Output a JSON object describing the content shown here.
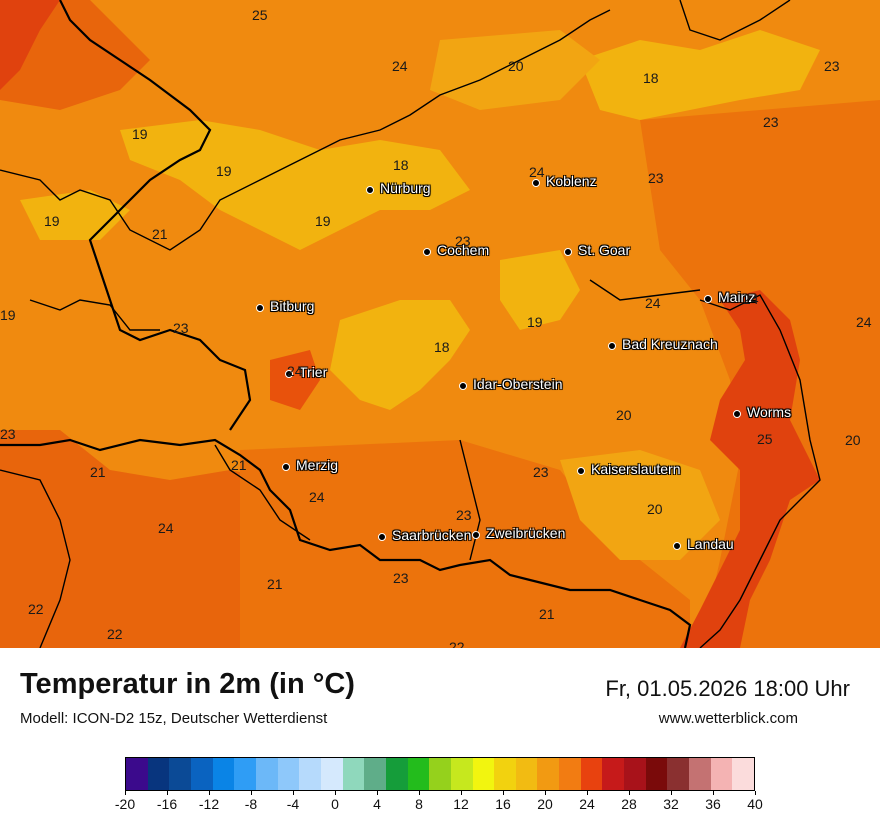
{
  "title": "Temperatur in 2m (in °C)",
  "model": "Modell: ICON-D2 15z, Deutscher Wetterdienst",
  "datetime": "Fr, 01.05.2026 18:00 Uhr",
  "website": "www.wetterblick.com",
  "cities": [
    {
      "name": "Nürburg"
    },
    {
      "name": "Koblenz"
    },
    {
      "name": "Cochem"
    },
    {
      "name": "St. Goar"
    },
    {
      "name": "Bitburg"
    },
    {
      "name": "Mainz"
    },
    {
      "name": "Bad Kreuznach"
    },
    {
      "name": "Trier"
    },
    {
      "name": "Idar-Oberstein"
    },
    {
      "name": "Worms"
    },
    {
      "name": "Merzig"
    },
    {
      "name": "Kaiserslautern"
    },
    {
      "name": "Saarbrücken"
    },
    {
      "name": "Zweibrücken"
    },
    {
      "name": "Landau"
    }
  ],
  "temperature_labels": [
    "25",
    "24",
    "20",
    "18",
    "23",
    "19",
    "19",
    "18",
    "24",
    "23",
    "19",
    "21",
    "23",
    "19",
    "24",
    "24",
    "19",
    "18",
    "24",
    "20",
    "25",
    "20",
    "23",
    "21",
    "21",
    "24",
    "23",
    "24",
    "20",
    "21",
    "23",
    "22",
    "22",
    "21",
    "22",
    "23"
  ],
  "legend": {
    "ticks": [
      "-20",
      "-16",
      "-12",
      "-8",
      "-4",
      "0",
      "4",
      "8",
      "12",
      "16",
      "20",
      "24",
      "28",
      "32",
      "36",
      "40"
    ],
    "colors": [
      "#3b0a8c",
      "#08357e",
      "#0b4a96",
      "#0a63c0",
      "#0a84e6",
      "#2f9df5",
      "#6cb8f8",
      "#8ec8fa",
      "#b6dafc",
      "#d5e9fd",
      "#8fd8bc",
      "#5fad89",
      "#159d3a",
      "#23bc1c",
      "#95d11c",
      "#c6e81e",
      "#f2f50f",
      "#f2d20f",
      "#f2bb12",
      "#f29a12",
      "#f27c12",
      "#e8420f",
      "#c61a1a",
      "#a8121a",
      "#7a0a0a",
      "#8a3030",
      "#c47272",
      "#f4b3b3",
      "#fbdcdc"
    ]
  }
}
